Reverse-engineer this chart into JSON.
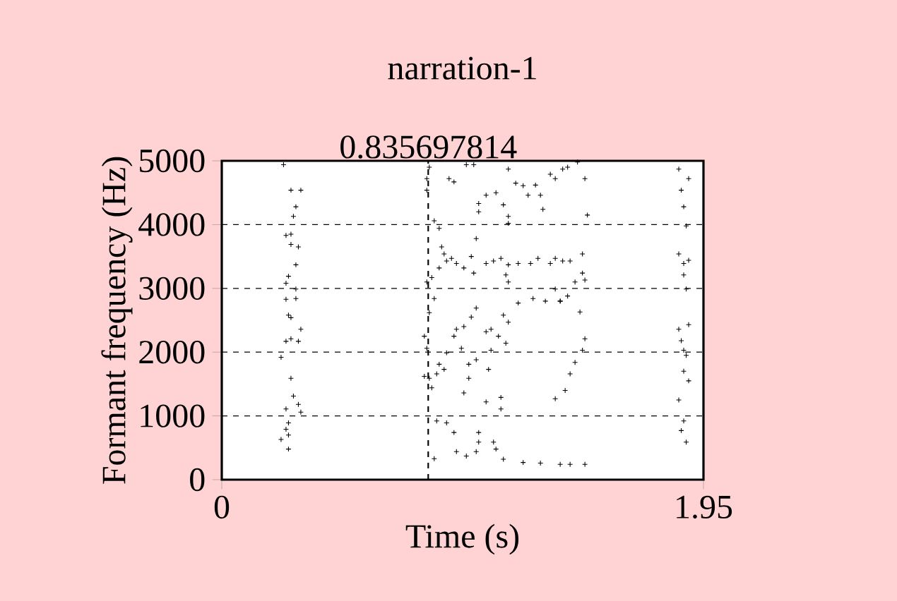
{
  "chart_data": {
    "type": "scatter",
    "title": "narration-1",
    "xlabel": "Time (s)",
    "ylabel": "Formant frequency (Hz)",
    "xlim": [
      0,
      1.95
    ],
    "xticks": [
      0,
      1.95
    ],
    "ylim": [
      0,
      5000
    ],
    "yticks": [
      0,
      1000,
      2000,
      3000,
      4000,
      5000
    ],
    "grid": "y",
    "marker": "cross",
    "ref_lines": [
      {
        "axis": "x",
        "value": 0.835697814,
        "label": "0.835697814",
        "line_style": "dashed",
        "color": "#000000"
      }
    ],
    "series": [
      {
        "color": "#000000",
        "x": [
          0.25,
          0.28,
          0.32,
          0.3,
          0.29,
          0.26,
          0.28,
          0.28,
          0.31,
          0.3,
          0.27,
          0.26,
          0.3,
          0.26,
          0.3,
          0.27,
          0.28,
          0.32,
          0.26,
          0.28,
          0.31,
          0.24,
          0.28,
          0.29,
          0.31,
          0.26,
          0.32,
          0.27,
          0.26,
          0.27,
          0.24,
          0.27,
          0.84,
          0.83,
          0.83,
          0.92,
          0.94,
          0.99,
          1.02,
          1.16,
          1.19,
          1.22,
          1.27,
          1.33,
          1.38,
          1.07,
          1.11,
          1.14,
          1.24,
          1.29,
          1.04,
          1.04,
          1.16,
          1.3,
          0.86,
          0.88,
          1.16,
          1.03,
          0.89,
          0.9,
          0.93,
          0.91,
          0.88,
          0.85,
          0.83,
          0.95,
          0.98,
          1.01,
          1.02,
          1.07,
          1.1,
          1.13,
          1.16,
          1.2,
          1.25,
          1.28,
          1.33,
          1.38,
          1.15,
          1.16,
          0.86,
          0.84,
          0.82,
          0.83,
          0.82,
          0.84,
          0.85,
          0.95,
          0.94,
          0.98,
          1.01,
          1.03,
          0.91,
          0.88,
          0.87,
          0.9,
          0.97,
          1.03,
          1.0,
          1.0,
          0.98,
          1.08,
          1.07,
          1.09,
          1.12,
          1.15,
          1.09,
          1.14,
          1.16,
          1.2,
          1.26,
          1.31,
          1.37,
          1.07,
          1.13,
          1.13,
          0.87,
          0.91,
          0.94,
          1.04,
          1.04,
          1.03,
          1.1,
          1.11,
          0.86,
          0.95,
          0.99,
          1.14,
          1.22,
          1.29,
          1.37,
          1.35,
          1.4,
          1.44,
          1.47,
          1.48,
          1.35,
          1.41,
          1.46,
          1.46,
          1.43,
          1.47,
          1.35,
          1.4,
          1.37,
          1.45,
          1.47,
          1.46,
          1.43,
          1.41,
          1.39,
          1.35,
          1.41,
          1.47,
          1.85,
          1.89,
          1.86,
          1.87,
          1.88,
          1.85,
          1.87,
          1.89,
          1.87,
          1.88,
          1.85,
          1.89,
          1.86,
          1.87,
          1.88,
          1.87,
          1.89,
          1.85,
          1.87,
          1.86,
          1.88
        ],
        "values": [
          4940,
          4540,
          4540,
          4280,
          4130,
          3830,
          3850,
          3690,
          3650,
          3370,
          3190,
          3080,
          2990,
          2830,
          2840,
          2580,
          2540,
          2360,
          2170,
          2210,
          2170,
          1920,
          1590,
          1310,
          1180,
          1110,
          1060,
          890,
          790,
          700,
          630,
          480,
          4900,
          4720,
          4540,
          4720,
          4670,
          4940,
          4940,
          4870,
          4650,
          4610,
          4620,
          4790,
          4870,
          4460,
          4500,
          4310,
          4460,
          4460,
          4330,
          4200,
          4130,
          4240,
          4060,
          3940,
          4020,
          3780,
          3650,
          3540,
          3470,
          3430,
          3320,
          3170,
          3100,
          3390,
          3320,
          3500,
          3240,
          3390,
          3430,
          3470,
          3370,
          3390,
          3390,
          3470,
          3390,
          3430,
          3210,
          3100,
          2840,
          2620,
          2250,
          2060,
          1620,
          1590,
          1440,
          2360,
          2250,
          2400,
          2550,
          2690,
          1990,
          1810,
          1660,
          1730,
          2060,
          1880,
          1810,
          1590,
          1360,
          1730,
          2320,
          2360,
          2250,
          2140,
          2030,
          2580,
          2470,
          2770,
          2840,
          2800,
          2800,
          1220,
          1290,
          1110,
          920,
          890,
          740,
          740,
          590,
          440,
          590,
          480,
          330,
          440,
          370,
          320,
          270,
          260,
          240,
          4720,
          4900,
          4980,
          4720,
          4150,
          3470,
          3430,
          3540,
          3240,
          3100,
          3130,
          2990,
          2880,
          2800,
          2630,
          2210,
          2030,
          1840,
          1660,
          1400,
          1270,
          240,
          240,
          4870,
          4720,
          4540,
          4280,
          3980,
          3540,
          3390,
          3440,
          3210,
          2990,
          2360,
          2430,
          2180,
          2030,
          1950,
          1700,
          1550,
          1250,
          920,
          770,
          590
        ]
      }
    ]
  }
}
